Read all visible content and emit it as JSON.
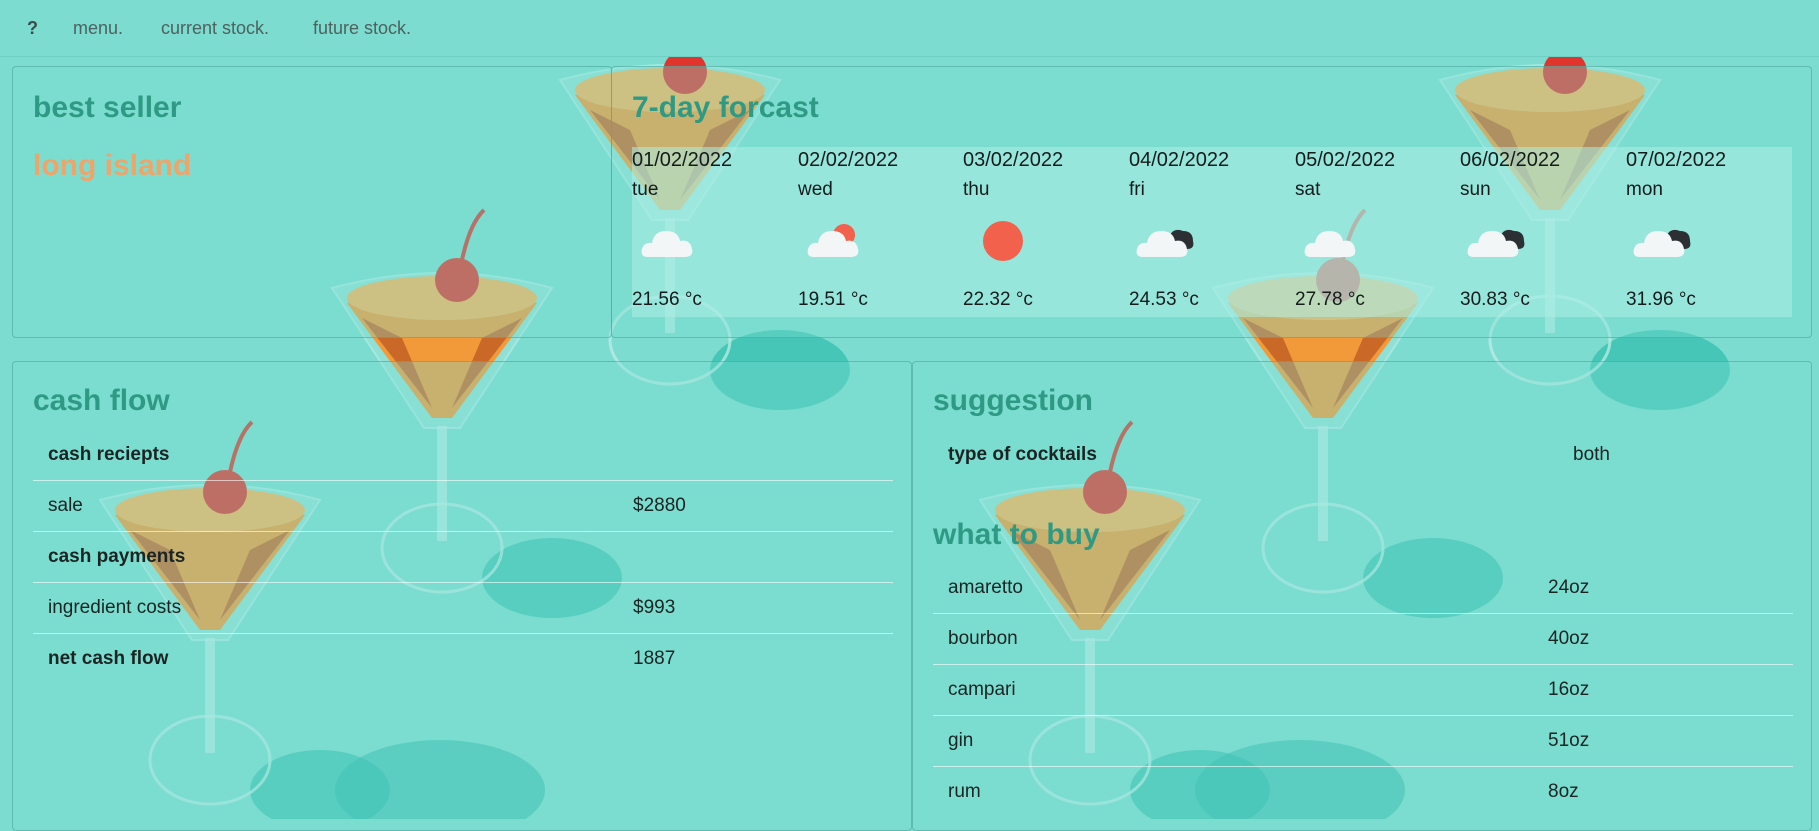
{
  "nav": {
    "brand": "?",
    "links": [
      "menu.",
      "current stock.",
      "future stock."
    ]
  },
  "best_seller": {
    "title": "best seller",
    "value": "long island",
    "value_color": "#f0a46a"
  },
  "forecast": {
    "title": "7-day forcast",
    "days": [
      {
        "date": "01/02/2022",
        "day": "tue",
        "icon": "cloud-icon",
        "temp": "21.56 °c"
      },
      {
        "date": "02/02/2022",
        "day": "wed",
        "icon": "partly-sunny-icon",
        "temp": "19.51 °c"
      },
      {
        "date": "03/02/2022",
        "day": "thu",
        "icon": "sun-icon",
        "temp": "22.32 °c"
      },
      {
        "date": "04/02/2022",
        "day": "fri",
        "icon": "dark-cloud-icon",
        "temp": "24.53 °c"
      },
      {
        "date": "05/02/2022",
        "day": "sat",
        "icon": "cloud-icon",
        "temp": "27.78 °c"
      },
      {
        "date": "06/02/2022",
        "day": "sun",
        "icon": "dark-cloud-icon",
        "temp": "30.83 °c"
      },
      {
        "date": "07/02/2022",
        "day": "mon",
        "icon": "dark-cloud-icon",
        "temp": "31.96 °c"
      }
    ]
  },
  "cash_flow": {
    "title": "cash flow",
    "rows": [
      {
        "label": "cash reciepts",
        "value": "",
        "header": true
      },
      {
        "label": "sale",
        "value": "$2880",
        "header": false
      },
      {
        "label": "cash payments",
        "value": "",
        "header": true
      },
      {
        "label": "ingredient costs",
        "value": "$993",
        "header": false
      },
      {
        "label": "net cash flow",
        "value": "1887",
        "header": true
      }
    ]
  },
  "suggestion": {
    "title": "suggestion",
    "type_label": "type of cocktails",
    "type_value": "both",
    "buy_title": "what to buy",
    "items": [
      {
        "name": "amaretto",
        "qty": "24oz"
      },
      {
        "name": "bourbon",
        "qty": "40oz"
      },
      {
        "name": "campari",
        "qty": "16oz"
      },
      {
        "name": "gin",
        "qty": "51oz"
      },
      {
        "name": "rum",
        "qty": "8oz"
      }
    ]
  },
  "colors": {
    "background": "#7cdcd0",
    "heading": "#2f9a84",
    "accent_orange": "#f0a46a",
    "sun": "#f2614b"
  }
}
